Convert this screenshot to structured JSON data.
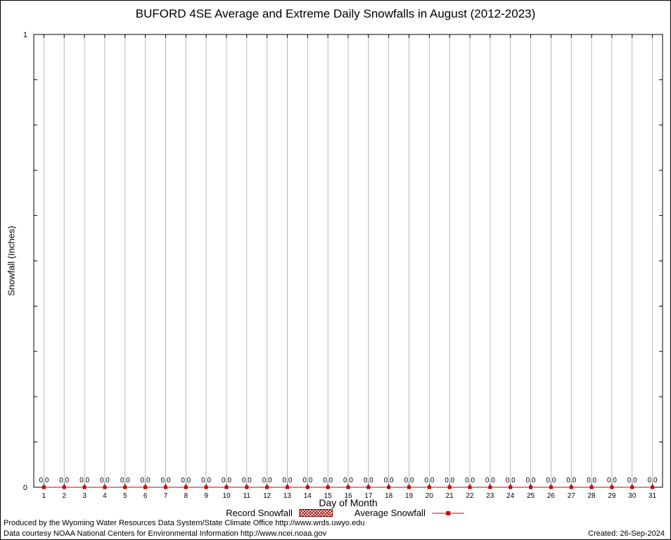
{
  "chart_data": {
    "type": "line",
    "title": "BUFORD 4SE Average and Extreme Daily Snowfalls in August (2012-2023)",
    "xlabel": "Day of Month",
    "ylabel": "Snowfall (Inches)",
    "ylim": [
      0,
      1
    ],
    "ytick_labels": [
      "0",
      "1"
    ],
    "grid": "vertical-gridlines-on",
    "legend_position": "bottom-center",
    "x": [
      1,
      2,
      3,
      4,
      5,
      6,
      7,
      8,
      9,
      10,
      11,
      12,
      13,
      14,
      15,
      16,
      17,
      18,
      19,
      20,
      21,
      22,
      23,
      24,
      25,
      26,
      27,
      28,
      29,
      30,
      31
    ],
    "series": [
      {
        "name": "Record Snowfall",
        "type": "bar",
        "color": "#a01010",
        "values": [
          0.0,
          0.0,
          0.0,
          0.0,
          0.0,
          0.0,
          0.0,
          0.0,
          0.0,
          0.0,
          0.0,
          0.0,
          0.0,
          0.0,
          0.0,
          0.0,
          0.0,
          0.0,
          0.0,
          0.0,
          0.0,
          0.0,
          0.0,
          0.0,
          0.0,
          0.0,
          0.0,
          0.0,
          0.0,
          0.0,
          0.0
        ]
      },
      {
        "name": "Average Snowfall",
        "type": "line",
        "color": "#cc0000",
        "values": [
          0.0,
          0.0,
          0.0,
          0.0,
          0.0,
          0.0,
          0.0,
          0.0,
          0.0,
          0.0,
          0.0,
          0.0,
          0.0,
          0.0,
          0.0,
          0.0,
          0.0,
          0.0,
          0.0,
          0.0,
          0.0,
          0.0,
          0.0,
          0.0,
          0.0,
          0.0,
          0.0,
          0.0,
          0.0,
          0.0,
          0.0
        ]
      }
    ],
    "point_labels": [
      "0.0",
      "0.0",
      "0.0",
      "0.0",
      "0.0",
      "0.0",
      "0.0",
      "0.0",
      "0.0",
      "0.0",
      "0.0",
      "0.0",
      "0.0",
      "0.0",
      "0.0",
      "0.0",
      "0.0",
      "0.0",
      "0.0",
      "0.0",
      "0.0",
      "0.0",
      "0.0",
      "0.0",
      "0.0",
      "0.0",
      "0.0",
      "0.0",
      "0.0",
      "0.0",
      "0.0"
    ]
  },
  "footer": {
    "line1": "Produced by the Wyoming Water Resources Data System/State Climate Office http://www.wrds.uwyo.edu",
    "line2": "Data courtesy NOAA National Centers for Environmental Information http://www.ncei.noaa.gov",
    "created": "Created: 26-Sep-2024"
  }
}
